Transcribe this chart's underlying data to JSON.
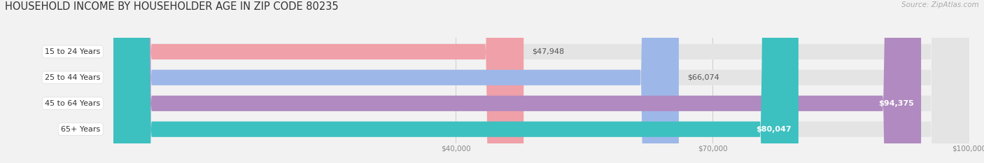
{
  "title": "HOUSEHOLD INCOME BY HOUSEHOLDER AGE IN ZIP CODE 80235",
  "source": "Source: ZipAtlas.com",
  "categories": [
    "15 to 24 Years",
    "25 to 44 Years",
    "45 to 64 Years",
    "65+ Years"
  ],
  "values": [
    47948,
    66074,
    94375,
    80047
  ],
  "bar_colors": [
    "#f0a0a8",
    "#9db8e8",
    "#b08ac0",
    "#3dc0c0"
  ],
  "bar_labels": [
    "$47,948",
    "$66,074",
    "$94,375",
    "$80,047"
  ],
  "label_colors": [
    "#666666",
    "#666666",
    "#ffffff",
    "#ffffff"
  ],
  "xmin": 0,
  "xmax": 100000,
  "xticks": [
    40000,
    70000,
    100000
  ],
  "xtick_labels": [
    "$40,000",
    "$70,000",
    "$100,000"
  ],
  "background_color": "#f2f2f2",
  "bar_bg_color": "#e4e4e4",
  "title_fontsize": 10.5,
  "source_fontsize": 7.5,
  "label_fontsize": 8,
  "cat_fontsize": 8,
  "xtick_fontsize": 7.5
}
